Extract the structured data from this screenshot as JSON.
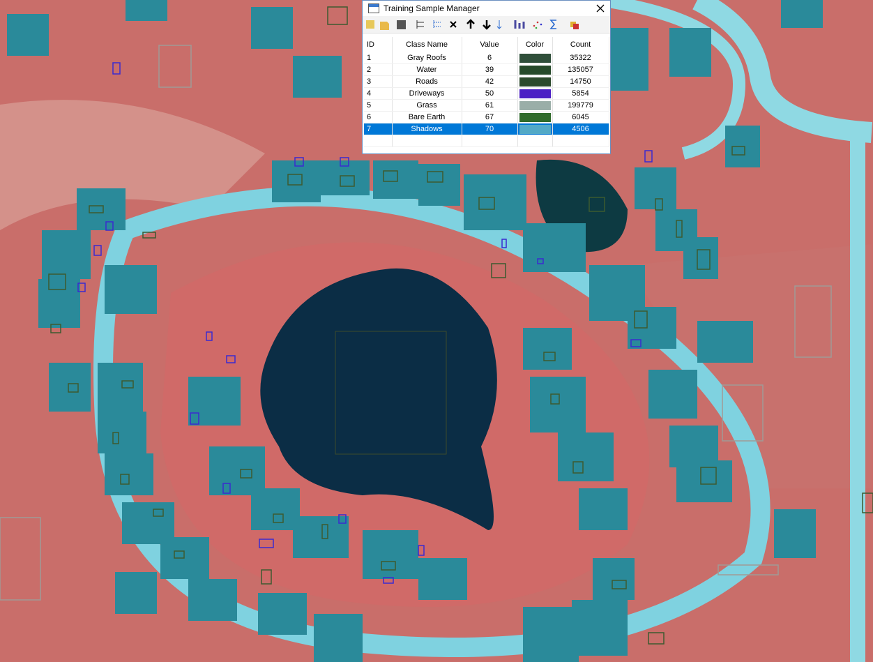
{
  "window": {
    "title": "Training Sample Manager"
  },
  "table": {
    "columns": [
      "ID",
      "Class Name",
      "Value",
      "Color",
      "Count"
    ],
    "rows": [
      {
        "id": 1,
        "name": "Gray Roofs",
        "value": 6,
        "color": "#2f4f3a",
        "count": 35322
      },
      {
        "id": 2,
        "name": "Water",
        "value": 39,
        "color": "#264a2a",
        "count": 135057
      },
      {
        "id": 3,
        "name": "Roads",
        "value": 42,
        "color": "#2c4a2c",
        "count": 14750
      },
      {
        "id": 4,
        "name": "Driveways",
        "value": 50,
        "color": "#4b1fc4",
        "count": 5854
      },
      {
        "id": 5,
        "name": "Grass",
        "value": 61,
        "color": "#9aaea8",
        "count": 199779
      },
      {
        "id": 6,
        "name": "Bare Earth",
        "value": 67,
        "color": "#2f6a2a",
        "count": 6045
      },
      {
        "id": 7,
        "name": "Shadows",
        "value": 70,
        "color": "#52a9c6",
        "count": 4506
      }
    ],
    "selected_row": 6
  }
}
